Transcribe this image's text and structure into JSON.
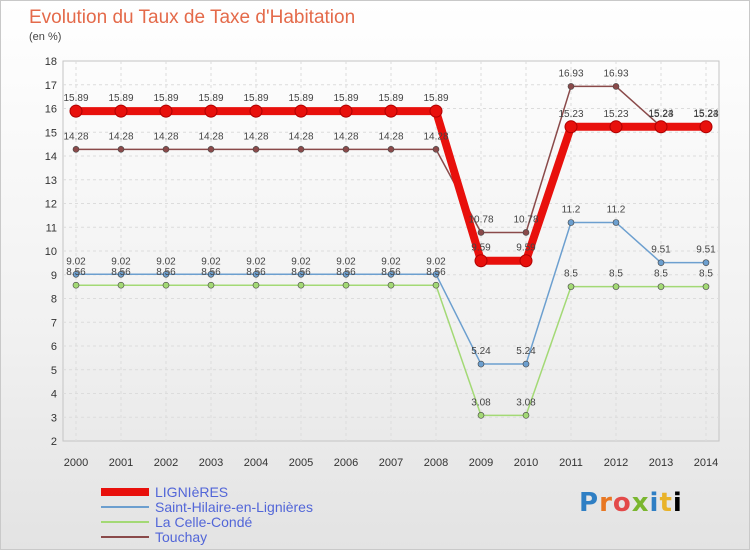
{
  "title": "Evolution du Taux de Taxe d'Habitation",
  "subtitle": "(en %)",
  "logo_text": "Proxiti",
  "chart_data": {
    "type": "line",
    "title": "Evolution du Taux de Taxe d'Habitation",
    "ylabel": "(en %)",
    "xlabel": "",
    "ylim": [
      2,
      18
    ],
    "yticks": [
      2,
      3,
      4,
      5,
      6,
      7,
      8,
      9,
      10,
      11,
      12,
      13,
      14,
      15,
      16,
      17,
      18
    ],
    "grid": true,
    "legend_position": "bottom-left",
    "x": [
      2000,
      2001,
      2002,
      2003,
      2004,
      2005,
      2006,
      2007,
      2008,
      2009,
      2010,
      2011,
      2012,
      2013,
      2014
    ],
    "series": [
      {
        "name": "LIGNIèRES",
        "color": "#e8100c",
        "values": [
          15.89,
          15.89,
          15.89,
          15.89,
          15.89,
          15.89,
          15.89,
          15.89,
          15.89,
          9.59,
          9.59,
          15.23,
          15.23,
          15.23,
          15.23
        ]
      },
      {
        "name": "Saint-Hilaire-en-Lignières",
        "color": "#6c9fcf",
        "values": [
          9.02,
          9.02,
          9.02,
          9.02,
          9.02,
          9.02,
          9.02,
          9.02,
          9.02,
          5.24,
          5.24,
          11.2,
          11.2,
          9.51,
          9.51
        ]
      },
      {
        "name": "La Celle-Condé",
        "color": "#a3d975",
        "values": [
          8.56,
          8.56,
          8.56,
          8.56,
          8.56,
          8.56,
          8.56,
          8.56,
          8.56,
          3.08,
          3.08,
          8.5,
          8.5,
          8.5,
          8.5
        ]
      },
      {
        "name": "Touchay",
        "color": "#8a4a4a",
        "values": [
          14.28,
          14.28,
          14.28,
          14.28,
          14.28,
          14.28,
          14.28,
          14.28,
          14.28,
          10.78,
          10.78,
          16.93,
          16.93,
          15.24,
          15.24
        ]
      }
    ],
    "data_labels": {
      "LIGNIèRES": [
        "15.89",
        "15.89",
        "15.89",
        "15.89",
        "15.89",
        "15.89",
        "15.89",
        "15.89",
        "15.89",
        "9.59",
        "9.59",
        "15.23",
        "15.23",
        "15.23",
        "15.23"
      ],
      "Saint-Hilaire-en-Lignières": [
        "9.02",
        "9.02",
        "9.02",
        "9.02",
        "9.02",
        "9.02",
        "9.02",
        "9.02",
        "9.02",
        "5.24",
        "5.24",
        "11.2",
        "11.2",
        "9.51",
        "9.51"
      ],
      "La Celle-Condé": [
        "8.56",
        "8.56",
        "8.56",
        "8.56",
        "8.56",
        "8.56",
        "8.56",
        "8.56",
        "8.56",
        "3.08",
        "3.08",
        "8.5",
        "8.5",
        "8.5",
        "8.5"
      ],
      "Touchay": [
        "14.28",
        "14.28",
        "14.28",
        "14.28",
        "14.28",
        "14.28",
        "14.28",
        "14.28",
        "14.28",
        "10.78",
        "10.78",
        "16.93",
        "16.93",
        "15.24",
        "15.24"
      ]
    }
  }
}
